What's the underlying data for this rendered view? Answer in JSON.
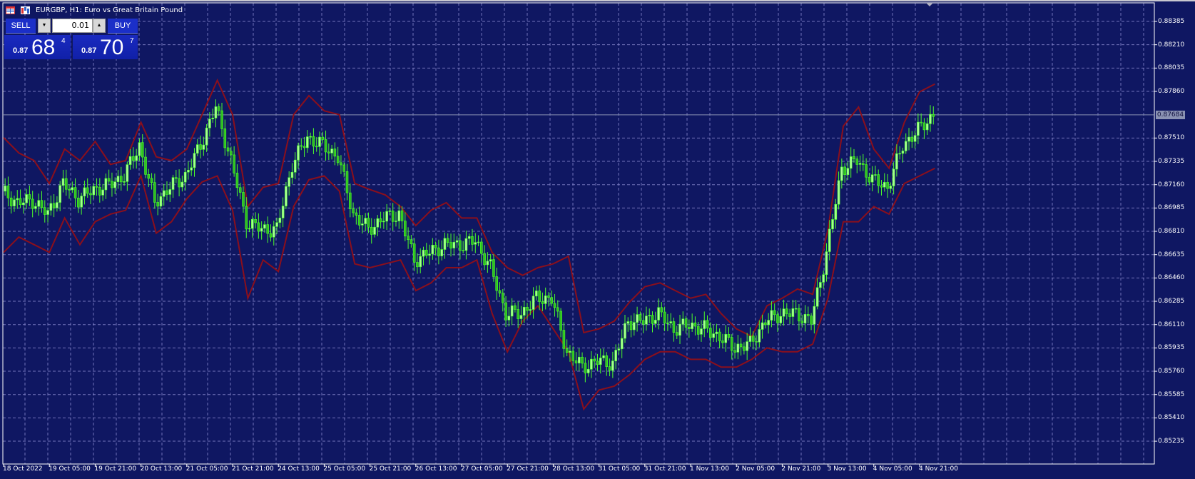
{
  "window": {
    "title": "EURGBP, H1:  Euro vs Great Britain Pound"
  },
  "trade_panel": {
    "sell_label": "SELL",
    "buy_label": "BUY",
    "lot_value": "0.01",
    "bid": {
      "prefix": "0.87",
      "big": "68",
      "sup": "4"
    },
    "ask": {
      "prefix": "0.87",
      "big": "70",
      "sup": "7"
    }
  },
  "colors": {
    "background": "#0f1762",
    "grid": "#8a8ad0",
    "candles": "#4cff2a",
    "bands": "#8b0f1c",
    "current_price_line": "#8a92b2"
  },
  "chart_data": {
    "type": "candlestick",
    "symbol": "EURGBP",
    "timeframe": "H1",
    "ylim": [
      0.8515,
      0.8847
    ],
    "grid": true,
    "current_price": "0.87684",
    "y_ticks": [
      "0.88385",
      "0.88210",
      "0.88035",
      "0.87860",
      "0.87510",
      "0.87335",
      "0.87160",
      "0.86985",
      "0.86810",
      "0.86635",
      "0.86460",
      "0.86285",
      "0.86110",
      "0.85935",
      "0.85760",
      "0.85585",
      "0.85410",
      "0.85235"
    ],
    "x_ticks": [
      "18 Oct 2022",
      "19 Oct 05:00",
      "19 Oct 21:00",
      "20 Oct 13:00",
      "21 Oct 05:00",
      "21 Oct 21:00",
      "24 Oct 13:00",
      "25 Oct 05:00",
      "25 Oct 21:00",
      "26 Oct 13:00",
      "27 Oct 05:00",
      "27 Oct 21:00",
      "28 Oct 13:00",
      "31 Oct 05:00",
      "31 Oct 21:00",
      "1 Nov 13:00",
      "2 Nov 05:00",
      "2 Nov 21:00",
      "3 Nov 13:00",
      "4 Nov 05:00",
      "4 Nov 21:00"
    ],
    "close": [
      0.87111,
      0.87025,
      0.87042,
      0.86939,
      0.87169,
      0.87054,
      0.87123,
      0.87157,
      0.87226,
      0.87455,
      0.87025,
      0.8714,
      0.87226,
      0.87455,
      0.87742,
      0.87341,
      0.86882,
      0.86824,
      0.86824,
      0.87312,
      0.87513,
      0.87455,
      0.87369,
      0.86939,
      0.86824,
      0.8691,
      0.86939,
      0.86595,
      0.86652,
      0.8671,
      0.8671,
      0.86738,
      0.86537,
      0.86193,
      0.86193,
      0.86308,
      0.86308,
      0.85906,
      0.85791,
      0.85837,
      0.8582,
      0.86136,
      0.86136,
      0.86193,
      0.86078,
      0.86107,
      0.86078,
      0.86021,
      0.85935,
      0.85964,
      0.86136,
      0.86193,
      0.86193,
      0.86136,
      0.86652,
      0.87283,
      0.87341,
      0.87197,
      0.8714,
      0.87455,
      0.8757,
      0.87685
    ],
    "upper_band": [
      0.87513,
      0.87398,
      0.87341,
      0.87169,
      0.87427,
      0.87341,
      0.87484,
      0.87312,
      0.87341,
      0.87628,
      0.87369,
      0.87341,
      0.87427,
      0.87685,
      0.87943,
      0.87685,
      0.86996,
      0.8714,
      0.87169,
      0.87685,
      0.87828,
      0.87714,
      0.87685,
      0.87169,
      0.87123,
      0.87083,
      0.86996,
      0.86853,
      0.86968,
      0.87025,
      0.8691,
      0.8691,
      0.86652,
      0.86537,
      0.8648,
      0.86537,
      0.86566,
      0.86623,
      0.8605,
      0.86078,
      0.86136,
      0.86279,
      0.86394,
      0.86423,
      0.86365,
      0.86308,
      0.86337,
      0.86193,
      0.86078,
      0.86021,
      0.86251,
      0.86308,
      0.86377,
      0.86337,
      0.86824,
      0.87599,
      0.87742,
      0.87427,
      0.87283,
      0.87628,
      0.87857,
      0.87915
    ],
    "lower_band": [
      0.86652,
      0.86767,
      0.8671,
      0.86652,
      0.8691,
      0.8671,
      0.86882,
      0.86939,
      0.86968,
      0.87226,
      0.86796,
      0.86882,
      0.87054,
      0.8718,
      0.87226,
      0.86968,
      0.86308,
      0.86595,
      0.86509,
      0.86996,
      0.87197,
      0.87226,
      0.87111,
      0.86566,
      0.86537,
      0.86566,
      0.86595,
      0.86365,
      0.86423,
      0.86537,
      0.86537,
      0.86595,
      0.86193,
      0.85906,
      0.86136,
      0.86251,
      0.86078,
      0.85906,
      0.85476,
      0.85619,
      0.85648,
      0.85734,
      0.85849,
      0.85906,
      0.85906,
      0.85849,
      0.85849,
      0.85791,
      0.85791,
      0.85849,
      0.85935,
      0.85906,
      0.85906,
      0.85964,
      0.86308,
      0.86882,
      0.86882,
      0.86996,
      0.86939,
      0.87169,
      0.87226,
      0.87283
    ]
  }
}
